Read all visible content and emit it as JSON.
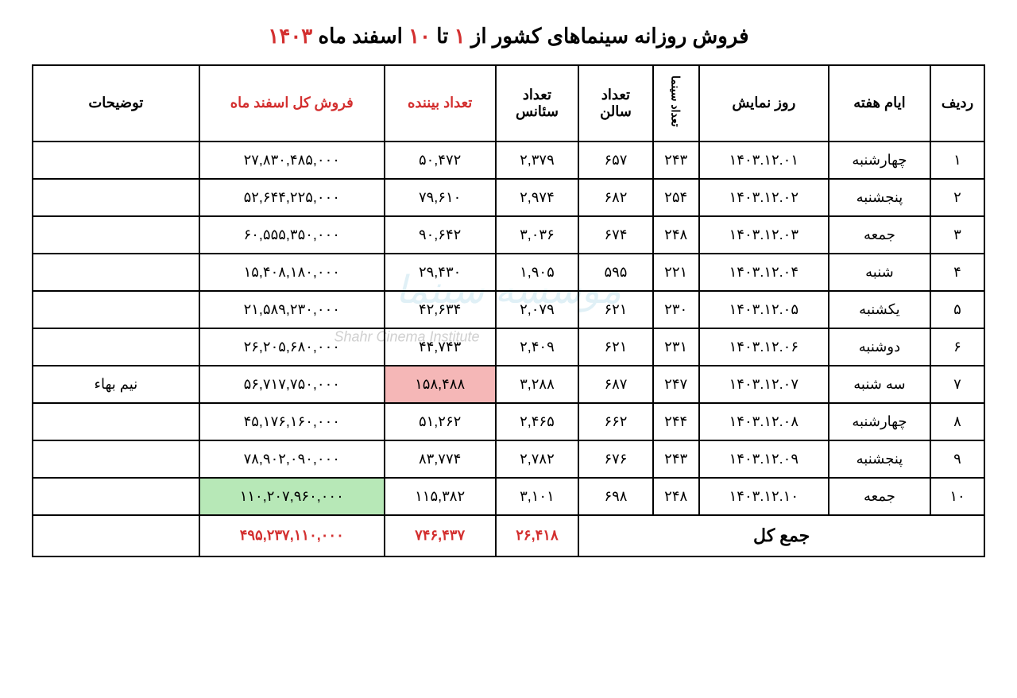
{
  "title": {
    "prefix": "فروش روزانه سینماهای کشور از ",
    "num1": "۱",
    "mid": " تا ",
    "num10": "۱۰",
    "suffix": " اسفند ماه ",
    "year": "۱۴۰۳"
  },
  "headers": {
    "row": "ردیف",
    "weekday": "ایام هفته",
    "showdate": "روز نمایش",
    "cinema_count": "تعداد سینما",
    "hall_count": "تعداد سالن",
    "session_count": "تعداد سئانس",
    "viewer_count": "تعداد بیننده",
    "total_sales": "فروش کل اسفند ماه",
    "notes": "توضیحات"
  },
  "rows": [
    {
      "num": "۱",
      "day": "چهارشنبه",
      "date": "۱۴۰۳.۱۲.۰۱",
      "cinema": "۲۴۳",
      "hall": "۶۵۷",
      "session": "۲,۳۷۹",
      "viewer": "۵۰,۴۷۲",
      "sales": "۲۷,۸۳۰,۴۸۵,۰۰۰",
      "notes": "",
      "viewer_hl": false,
      "sales_hl": false
    },
    {
      "num": "۲",
      "day": "پنجشنبه",
      "date": "۱۴۰۳.۱۲.۰۲",
      "cinema": "۲۵۴",
      "hall": "۶۸۲",
      "session": "۲,۹۷۴",
      "viewer": "۷۹,۶۱۰",
      "sales": "۵۲,۶۴۴,۲۲۵,۰۰۰",
      "notes": "",
      "viewer_hl": false,
      "sales_hl": false
    },
    {
      "num": "۳",
      "day": "جمعه",
      "date": "۱۴۰۳.۱۲.۰۳",
      "cinema": "۲۴۸",
      "hall": "۶۷۴",
      "session": "۳,۰۳۶",
      "viewer": "۹۰,۶۴۲",
      "sales": "۶۰,۵۵۵,۳۵۰,۰۰۰",
      "notes": "",
      "viewer_hl": false,
      "sales_hl": false
    },
    {
      "num": "۴",
      "day": "شنبه",
      "date": "۱۴۰۳.۱۲.۰۴",
      "cinema": "۲۲۱",
      "hall": "۵۹۵",
      "session": "۱,۹۰۵",
      "viewer": "۲۹,۴۳۰",
      "sales": "۱۵,۴۰۸,۱۸۰,۰۰۰",
      "notes": "",
      "viewer_hl": false,
      "sales_hl": false
    },
    {
      "num": "۵",
      "day": "یکشنبه",
      "date": "۱۴۰۳.۱۲.۰۵",
      "cinema": "۲۳۰",
      "hall": "۶۲۱",
      "session": "۲,۰۷۹",
      "viewer": "۴۲,۶۳۴",
      "sales": "۲۱,۵۸۹,۲۳۰,۰۰۰",
      "notes": "",
      "viewer_hl": false,
      "sales_hl": false
    },
    {
      "num": "۶",
      "day": "دوشنبه",
      "date": "۱۴۰۳.۱۲.۰۶",
      "cinema": "۲۳۱",
      "hall": "۶۲۱",
      "session": "۲,۴۰۹",
      "viewer": "۴۴,۷۴۳",
      "sales": "۲۶,۲۰۵,۶۸۰,۰۰۰",
      "notes": "",
      "viewer_hl": false,
      "sales_hl": false
    },
    {
      "num": "۷",
      "day": "سه شنبه",
      "date": "۱۴۰۳.۱۲.۰۷",
      "cinema": "۲۴۷",
      "hall": "۶۸۷",
      "session": "۳,۲۸۸",
      "viewer": "۱۵۸,۴۸۸",
      "sales": "۵۶,۷۱۷,۷۵۰,۰۰۰",
      "notes": "نیم بهاء",
      "viewer_hl": true,
      "sales_hl": false
    },
    {
      "num": "۸",
      "day": "چهارشنبه",
      "date": "۱۴۰۳.۱۲.۰۸",
      "cinema": "۲۴۴",
      "hall": "۶۶۲",
      "session": "۲,۴۶۵",
      "viewer": "۵۱,۲۶۲",
      "sales": "۴۵,۱۷۶,۱۶۰,۰۰۰",
      "notes": "",
      "viewer_hl": false,
      "sales_hl": false
    },
    {
      "num": "۹",
      "day": "پنجشنبه",
      "date": "۱۴۰۳.۱۲.۰۹",
      "cinema": "۲۴۳",
      "hall": "۶۷۶",
      "session": "۲,۷۸۲",
      "viewer": "۸۳,۷۷۴",
      "sales": "۷۸,۹۰۲,۰۹۰,۰۰۰",
      "notes": "",
      "viewer_hl": false,
      "sales_hl": false
    },
    {
      "num": "۱۰",
      "day": "جمعه",
      "date": "۱۴۰۳.۱۲.۱۰",
      "cinema": "۲۴۸",
      "hall": "۶۹۸",
      "session": "۳,۱۰۱",
      "viewer": "۱۱۵,۳۸۲",
      "sales": "۱۱۰,۲۰۷,۹۶۰,۰۰۰",
      "notes": "",
      "viewer_hl": false,
      "sales_hl": true
    }
  ],
  "totals": {
    "label": "جمع کل",
    "session": "۲۶,۴۱۸",
    "viewer": "۷۴۶,۴۳۷",
    "sales": "۴۹۵,۲۳۷,۱۱۰,۰۰۰"
  },
  "watermark": {
    "main": "موسسه سینما",
    "sub": "Shahr Cinema Institute"
  },
  "colors": {
    "red": "#d32f2f",
    "pink_highlight": "#f5b7b7",
    "green_highlight": "#b7e8b7",
    "border": "#000000",
    "background": "#ffffff",
    "watermark": "#a8d5e8"
  }
}
